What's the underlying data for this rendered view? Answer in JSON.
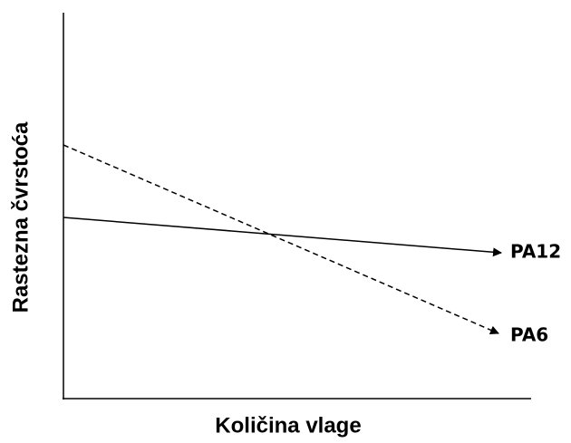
{
  "axes": {
    "x_label": "Količina vlage",
    "y_label": "Rastezna čvrstoća"
  },
  "lines": [
    {
      "label": "PA12",
      "style": "solid"
    },
    {
      "label": "PA6",
      "style": "dashed"
    }
  ]
}
